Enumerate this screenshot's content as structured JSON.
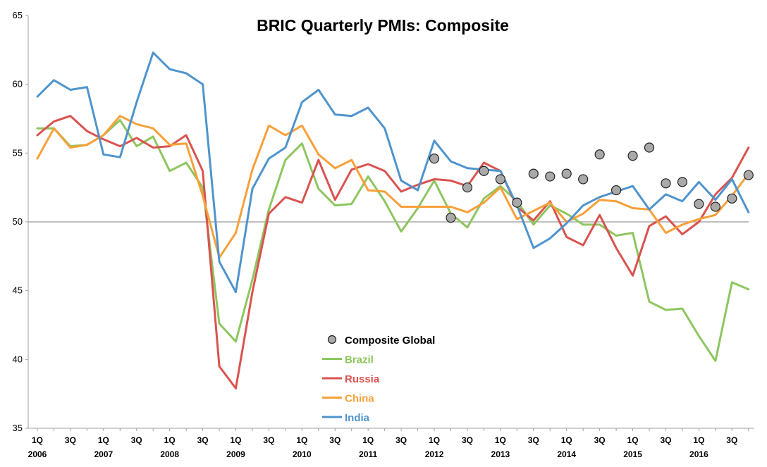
{
  "chart_data": {
    "type": "line",
    "title": "BRIC Quarterly PMIs: Composite",
    "xlabel": "",
    "ylabel": "",
    "ylim": [
      35,
      65
    ],
    "yticks": [
      35,
      40,
      45,
      50,
      55,
      60,
      65
    ],
    "reference_line": 50,
    "legend_position": "bottom-center",
    "categories": [
      "1Q 2006",
      "2Q 2006",
      "3Q 2006",
      "4Q 2006",
      "1Q 2007",
      "2Q 2007",
      "3Q 2007",
      "4Q 2007",
      "1Q 2008",
      "2Q 2008",
      "3Q 2008",
      "4Q 2008",
      "1Q 2009",
      "2Q 2009",
      "3Q 2009",
      "4Q 2009",
      "1Q 2010",
      "2Q 2010",
      "3Q 2010",
      "4Q 2010",
      "1Q 2011",
      "2Q 2011",
      "3Q 2011",
      "4Q 2011",
      "1Q 2012",
      "2Q 2012",
      "3Q 2012",
      "4Q 2012",
      "1Q 2013",
      "2Q 2013",
      "3Q 2013",
      "4Q 2013",
      "1Q 2014",
      "2Q 2014",
      "3Q 2014",
      "4Q 2014",
      "1Q 2015",
      "2Q 2015",
      "3Q 2015",
      "4Q 2015",
      "1Q 2016",
      "2Q 2016",
      "3Q 2016",
      "4Q 2016"
    ],
    "x_tick_labels": [
      {
        "index": 0,
        "quarter": "1Q",
        "year": "2006"
      },
      {
        "index": 2,
        "quarter": "3Q",
        "year": ""
      },
      {
        "index": 4,
        "quarter": "1Q",
        "year": "2007"
      },
      {
        "index": 6,
        "quarter": "3Q",
        "year": ""
      },
      {
        "index": 8,
        "quarter": "1Q",
        "year": "2008"
      },
      {
        "index": 10,
        "quarter": "3Q",
        "year": ""
      },
      {
        "index": 12,
        "quarter": "1Q",
        "year": "2009"
      },
      {
        "index": 14,
        "quarter": "3Q",
        "year": ""
      },
      {
        "index": 16,
        "quarter": "1Q",
        "year": "2010"
      },
      {
        "index": 18,
        "quarter": "3Q",
        "year": ""
      },
      {
        "index": 20,
        "quarter": "1Q",
        "year": "2011"
      },
      {
        "index": 22,
        "quarter": "3Q",
        "year": ""
      },
      {
        "index": 24,
        "quarter": "1Q",
        "year": "2012"
      },
      {
        "index": 26,
        "quarter": "3Q",
        "year": ""
      },
      {
        "index": 28,
        "quarter": "1Q",
        "year": "2013"
      },
      {
        "index": 30,
        "quarter": "3Q",
        "year": ""
      },
      {
        "index": 32,
        "quarter": "1Q",
        "year": "2014"
      },
      {
        "index": 34,
        "quarter": "3Q",
        "year": ""
      },
      {
        "index": 36,
        "quarter": "1Q",
        "year": "2015"
      },
      {
        "index": 38,
        "quarter": "3Q",
        "year": ""
      },
      {
        "index": 40,
        "quarter": "1Q",
        "year": "2016"
      },
      {
        "index": 42,
        "quarter": "3Q",
        "year": ""
      }
    ],
    "series": [
      {
        "name": "Brazil",
        "color": "#8dc65f",
        "values": [
          56.8,
          56.8,
          55.5,
          55.6,
          56.3,
          57.4,
          55.5,
          56.2,
          53.7,
          54.3,
          52.5,
          42.6,
          41.3,
          45.8,
          50.9,
          54.5,
          55.7,
          52.4,
          51.2,
          51.3,
          53.3,
          51.5,
          49.3,
          51.0,
          53.0,
          50.6,
          49.6,
          51.7,
          52.6,
          51.5,
          49.8,
          51.2,
          50.6,
          49.8,
          49.8,
          49.0,
          49.2,
          44.2,
          43.6,
          43.7,
          41.7,
          39.9,
          45.6,
          45.1
        ]
      },
      {
        "name": "Russia",
        "color": "#d9534f",
        "values": [
          56.3,
          57.3,
          57.7,
          56.6,
          56.0,
          55.5,
          56.1,
          55.4,
          55.5,
          56.3,
          53.7,
          39.5,
          37.9,
          44.9,
          50.6,
          51.8,
          51.4,
          54.5,
          51.6,
          53.8,
          54.2,
          53.7,
          52.2,
          52.7,
          53.1,
          53.0,
          52.6,
          54.3,
          53.7,
          51.1,
          50.1,
          51.5,
          48.9,
          48.3,
          50.5,
          48.1,
          46.1,
          49.7,
          50.4,
          49.1,
          50.0,
          52.0,
          53.2,
          55.4
        ]
      },
      {
        "name": "China",
        "color": "#f7a039",
        "values": [
          54.6,
          56.8,
          55.4,
          55.6,
          56.3,
          57.7,
          57.1,
          56.8,
          55.6,
          55.7,
          51.9,
          47.4,
          49.2,
          53.8,
          57.0,
          56.3,
          57.0,
          54.9,
          53.9,
          54.5,
          52.3,
          52.2,
          51.1,
          51.1,
          51.1,
          51.1,
          50.7,
          51.4,
          52.5,
          50.2,
          50.8,
          51.4,
          50.0,
          50.6,
          51.6,
          51.5,
          51.0,
          50.9,
          49.2,
          49.8,
          50.2,
          50.5,
          51.9,
          53.5
        ]
      },
      {
        "name": "India",
        "color": "#4f94cd",
        "values": [
          59.1,
          60.3,
          59.6,
          59.8,
          54.9,
          54.7,
          58.7,
          62.3,
          61.1,
          60.8,
          60.0,
          47.1,
          44.9,
          52.4,
          54.6,
          55.4,
          58.7,
          59.6,
          57.8,
          57.7,
          58.3,
          56.8,
          53.0,
          52.3,
          55.9,
          54.4,
          53.9,
          53.8,
          53.7,
          51.2,
          48.1,
          48.8,
          49.9,
          51.2,
          51.8,
          52.2,
          52.6,
          50.9,
          52.0,
          51.5,
          52.9,
          51.6,
          53.1,
          50.7
        ]
      }
    ],
    "scatter_series": {
      "name": "Composite Global",
      "color": "#a9a9a9",
      "points": [
        {
          "x": 24,
          "y": 54.6
        },
        {
          "x": 25,
          "y": 50.3
        },
        {
          "x": 26,
          "y": 52.5
        },
        {
          "x": 27,
          "y": 53.7
        },
        {
          "x": 28,
          "y": 53.1
        },
        {
          "x": 29,
          "y": 51.4
        },
        {
          "x": 30,
          "y": 53.5
        },
        {
          "x": 31,
          "y": 53.3
        },
        {
          "x": 32,
          "y": 53.5
        },
        {
          "x": 33,
          "y": 53.1
        },
        {
          "x": 34,
          "y": 54.9
        },
        {
          "x": 35,
          "y": 52.3
        },
        {
          "x": 36,
          "y": 54.8
        },
        {
          "x": 37,
          "y": 55.4
        },
        {
          "x": 38,
          "y": 52.8
        },
        {
          "x": 39,
          "y": 52.9
        },
        {
          "x": 40,
          "y": 51.3
        },
        {
          "x": 41,
          "y": 51.1
        },
        {
          "x": 42,
          "y": 51.7
        },
        {
          "x": 43,
          "y": 53.4
        }
      ]
    }
  }
}
